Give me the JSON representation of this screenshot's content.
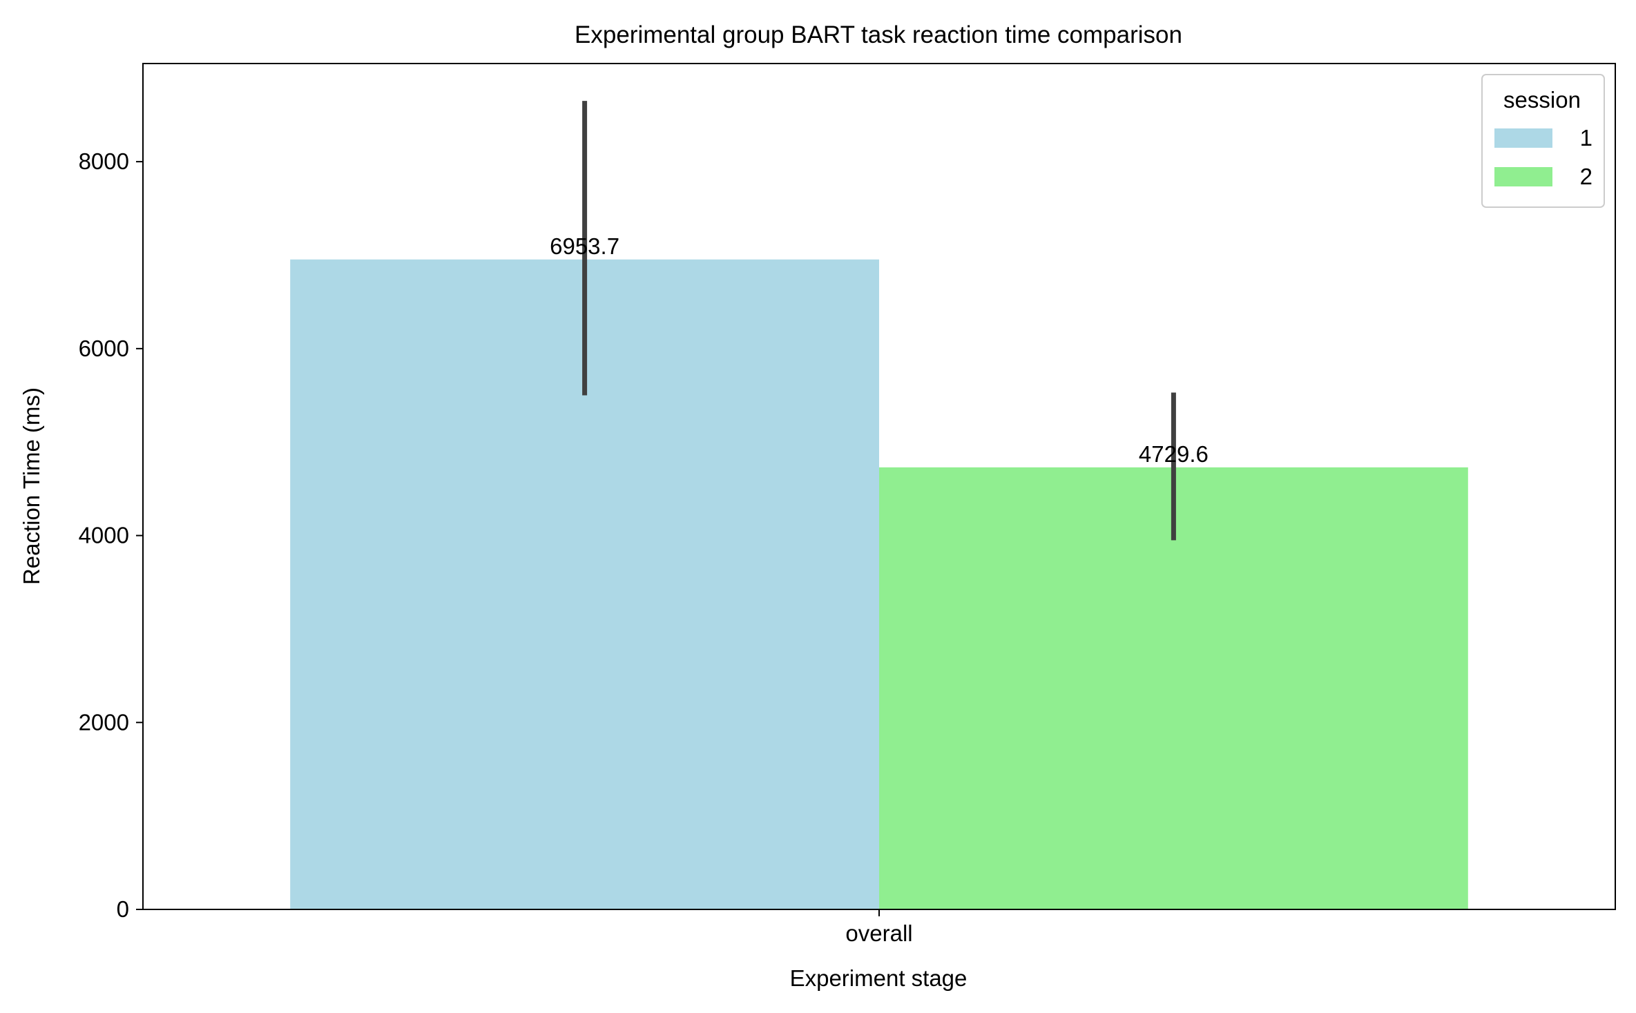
{
  "chart_data": {
    "type": "bar",
    "title": "Experimental group BART task reaction time comparison",
    "xlabel": "Experiment stage",
    "ylabel": "Reaction Time (ms)",
    "categories": [
      "overall"
    ],
    "ylim": [
      0,
      9050
    ],
    "yticks": [
      0,
      2000,
      4000,
      6000,
      8000
    ],
    "grid": false,
    "legend": {
      "title": "session",
      "position": "top-right"
    },
    "series": [
      {
        "name": "1",
        "color": "#add8e6",
        "values": [
          6953.7
        ],
        "value_labels": [
          "6953.7"
        ],
        "error_low": [
          5500
        ],
        "error_high": [
          8650
        ]
      },
      {
        "name": "2",
        "color": "#90ee90",
        "values": [
          4729.6
        ],
        "value_labels": [
          "4729.6"
        ],
        "error_low": [
          3950
        ],
        "error_high": [
          5530
        ]
      }
    ],
    "error_bar_color": "#404040"
  }
}
